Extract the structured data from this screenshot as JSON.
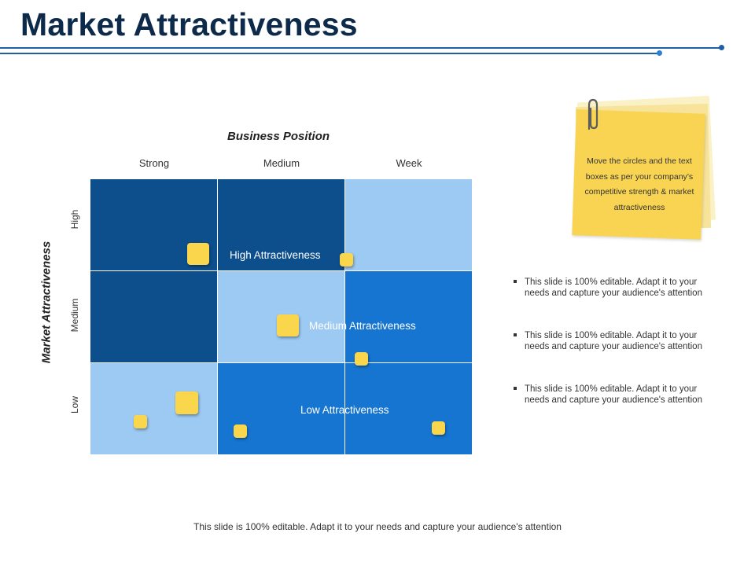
{
  "header": {
    "title": "Market Attractiveness"
  },
  "matrix": {
    "x_axis_title": "Business Position",
    "y_axis_title": "Market Attractiveness",
    "columns": [
      "Strong",
      "Medium",
      "Week"
    ],
    "rows": [
      "High",
      "Medium",
      "Low"
    ],
    "colors": {
      "dark": "#0d4e8d",
      "mid": "#1675d0",
      "light": "#9dcaf2",
      "marker": "#fad64c"
    },
    "cell_shades": [
      [
        "dark",
        "dark",
        "light"
      ],
      [
        "dark",
        "light",
        "mid"
      ],
      [
        "light",
        "mid",
        "mid"
      ]
    ],
    "zone_labels": {
      "high": "High Attractiveness",
      "medium": "Medium Attractiveness",
      "low": "Low Attractiveness"
    }
  },
  "sticky_note": {
    "text": "Move the circles and the text boxes as per your company’s competitive strength & market attractiveness",
    "icon": "paperclip-icon"
  },
  "bullets": [
    "This slide is 100% editable. Adapt it to your needs and capture your audience's attention",
    "This slide is 100% editable. Adapt it to your needs and capture your audience's attention",
    "This slide is 100% editable. Adapt it to your needs and capture your audience's attention"
  ],
  "footer": {
    "text": "This slide is 100% editable. Adapt it to your needs and capture your audience's attention"
  }
}
